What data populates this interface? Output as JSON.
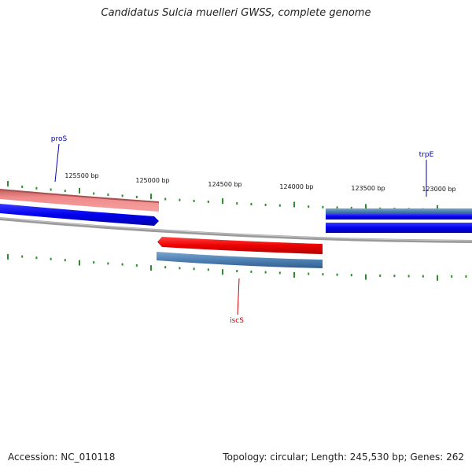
{
  "header": {
    "title": "Candidatus Sulcia muelleri GWSS, complete genome"
  },
  "footer": {
    "accession": "Accession: NC_010118",
    "summary": "Topology: circular; Length: 245,530 bp; Genes: 262"
  },
  "colors": {
    "backbone": "#8c8c8c",
    "tick": "#2e8b2e",
    "forward_gene_blue": "#0000ee",
    "reverse_gene_red": "#ee0000",
    "steelblue_feature": "#4f81b3",
    "pink_feature": "#f08a8a",
    "label_blue": "#0000aa",
    "label_red": "#cc0000"
  },
  "scale_labels": [
    "125500 bp",
    "125000 bp",
    "124500 bp",
    "124000 bp",
    "123500 bp",
    "123000 bp"
  ],
  "gene_labels": [
    {
      "name": "proS",
      "strand": "forward",
      "color": "#0000aa"
    },
    {
      "name": "trpE",
      "strand": "forward",
      "color": "#0000aa"
    },
    {
      "name": "iscS",
      "strand": "reverse",
      "color": "#cc0000"
    }
  ]
}
